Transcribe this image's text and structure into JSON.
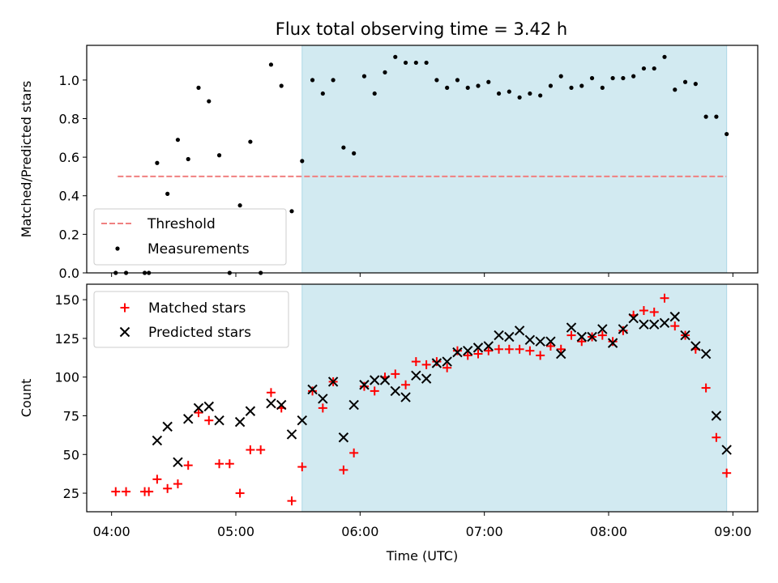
{
  "chart_data": {
    "title": "Flux total observing time = 3.42 h",
    "shaded_interval": [
      "05:32",
      "08:57"
    ],
    "shade_color": "#add8e6",
    "xlabel": "Time (UTC)",
    "x_ticks": [
      "04:00",
      "05:00",
      "06:00",
      "07:00",
      "08:00",
      "09:00"
    ],
    "xlim": [
      "03:48",
      "09:12"
    ],
    "panels": [
      {
        "type": "scatter",
        "ylabel": "Matched/Predicted stars",
        "ylim": [
          0,
          1.18
        ],
        "y_ticks": [
          "0.0",
          "0.2",
          "0.4",
          "0.6",
          "0.8",
          "1.0"
        ],
        "legend_position": "lower left",
        "threshold": {
          "name": "Threshold",
          "value": 0.5,
          "color": "#f08080",
          "x_range": [
            "04:03",
            "08:57"
          ]
        },
        "series": [
          {
            "name": "Measurements",
            "color": "#000000",
            "marker": "dot",
            "points": [
              [
                "04:02",
                0.0
              ],
              [
                "04:07",
                0.0
              ],
              [
                "04:16",
                0.0
              ],
              [
                "04:18",
                0.0
              ],
              [
                "04:22",
                0.57
              ],
              [
                "04:27",
                0.41
              ],
              [
                "04:32",
                0.69
              ],
              [
                "04:37",
                0.59
              ],
              [
                "04:42",
                0.96
              ],
              [
                "04:47",
                0.89
              ],
              [
                "04:52",
                0.61
              ],
              [
                "04:57",
                0.0
              ],
              [
                "05:02",
                0.35
              ],
              [
                "05:07",
                0.68
              ],
              [
                "05:12",
                0.0
              ],
              [
                "05:17",
                1.08
              ],
              [
                "05:22",
                0.97
              ],
              [
                "05:27",
                0.32
              ],
              [
                "05:32",
                0.58
              ],
              [
                "05:37",
                1.0
              ],
              [
                "05:42",
                0.93
              ],
              [
                "05:47",
                1.0
              ],
              [
                "05:52",
                0.65
              ],
              [
                "05:57",
                0.62
              ],
              [
                "06:02",
                1.02
              ],
              [
                "06:07",
                0.93
              ],
              [
                "06:12",
                1.04
              ],
              [
                "06:17",
                1.12
              ],
              [
                "06:22",
                1.09
              ],
              [
                "06:27",
                1.09
              ],
              [
                "06:32",
                1.09
              ],
              [
                "06:37",
                1.0
              ],
              [
                "06:42",
                0.96
              ],
              [
                "06:47",
                1.0
              ],
              [
                "06:52",
                0.96
              ],
              [
                "06:57",
                0.97
              ],
              [
                "07:02",
                0.99
              ],
              [
                "07:07",
                0.93
              ],
              [
                "07:12",
                0.94
              ],
              [
                "07:17",
                0.91
              ],
              [
                "07:22",
                0.93
              ],
              [
                "07:27",
                0.92
              ],
              [
                "07:32",
                0.97
              ],
              [
                "07:37",
                1.02
              ],
              [
                "07:42",
                0.96
              ],
              [
                "07:47",
                0.97
              ],
              [
                "07:52",
                1.01
              ],
              [
                "07:57",
                0.96
              ],
              [
                "08:02",
                1.01
              ],
              [
                "08:07",
                1.01
              ],
              [
                "08:12",
                1.02
              ],
              [
                "08:17",
                1.06
              ],
              [
                "08:22",
                1.06
              ],
              [
                "08:27",
                1.12
              ],
              [
                "08:32",
                0.95
              ],
              [
                "08:37",
                0.99
              ],
              [
                "08:42",
                0.98
              ],
              [
                "08:47",
                0.81
              ],
              [
                "08:52",
                0.81
              ],
              [
                "08:57",
                0.72
              ]
            ]
          }
        ]
      },
      {
        "type": "scatter",
        "ylabel": "Count",
        "ylim": [
          13,
          160
        ],
        "y_ticks": [
          "25",
          "50",
          "75",
          "100",
          "125",
          "150"
        ],
        "legend_position": "upper left",
        "series": [
          {
            "name": "Matched stars",
            "color": "#ff0000",
            "marker": "plus",
            "points": [
              [
                "04:02",
                26
              ],
              [
                "04:07",
                26
              ],
              [
                "04:16",
                26
              ],
              [
                "04:18",
                26
              ],
              [
                "04:22",
                34
              ],
              [
                "04:27",
                28
              ],
              [
                "04:32",
                31
              ],
              [
                "04:37",
                43
              ],
              [
                "04:42",
                77
              ],
              [
                "04:47",
                72
              ],
              [
                "04:52",
                44
              ],
              [
                "04:57",
                44
              ],
              [
                "05:02",
                25
              ],
              [
                "05:07",
                53
              ],
              [
                "05:12",
                53
              ],
              [
                "05:17",
                90
              ],
              [
                "05:22",
                80
              ],
              [
                "05:27",
                20
              ],
              [
                "05:32",
                42
              ],
              [
                "05:37",
                91
              ],
              [
                "05:42",
                80
              ],
              [
                "05:47",
                97
              ],
              [
                "05:52",
                40
              ],
              [
                "05:57",
                51
              ],
              [
                "06:02",
                94
              ],
              [
                "06:07",
                91
              ],
              [
                "06:12",
                100
              ],
              [
                "06:17",
                102
              ],
              [
                "06:22",
                95
              ],
              [
                "06:27",
                110
              ],
              [
                "06:32",
                108
              ],
              [
                "06:37",
                110
              ],
              [
                "06:42",
                106
              ],
              [
                "06:47",
                117
              ],
              [
                "06:52",
                114
              ],
              [
                "06:57",
                115
              ],
              [
                "07:02",
                117
              ],
              [
                "07:07",
                118
              ],
              [
                "07:12",
                118
              ],
              [
                "07:17",
                118
              ],
              [
                "07:22",
                117
              ],
              [
                "07:27",
                114
              ],
              [
                "07:32",
                120
              ],
              [
                "07:37",
                118
              ],
              [
                "07:42",
                127
              ],
              [
                "07:47",
                123
              ],
              [
                "07:52",
                126
              ],
              [
                "07:57",
                127
              ],
              [
                "08:02",
                123
              ],
              [
                "08:07",
                130
              ],
              [
                "08:12",
                140
              ],
              [
                "08:17",
                143
              ],
              [
                "08:22",
                142
              ],
              [
                "08:27",
                151
              ],
              [
                "08:32",
                133
              ],
              [
                "08:37",
                127
              ],
              [
                "08:42",
                118
              ],
              [
                "08:47",
                93
              ],
              [
                "08:52",
                61
              ],
              [
                "08:57",
                38
              ]
            ]
          },
          {
            "name": "Predicted stars",
            "color": "#000000",
            "marker": "x",
            "points": [
              [
                "04:22",
                59
              ],
              [
                "04:27",
                68
              ],
              [
                "04:32",
                45
              ],
              [
                "04:37",
                73
              ],
              [
                "04:42",
                80
              ],
              [
                "04:47",
                81
              ],
              [
                "04:52",
                72
              ],
              [
                "05:02",
                71
              ],
              [
                "05:07",
                78
              ],
              [
                "05:17",
                83
              ],
              [
                "05:22",
                82
              ],
              [
                "05:27",
                63
              ],
              [
                "05:32",
                72
              ],
              [
                "05:37",
                92
              ],
              [
                "05:42",
                86
              ],
              [
                "05:47",
                97
              ],
              [
                "05:52",
                61
              ],
              [
                "05:57",
                82
              ],
              [
                "06:02",
                95
              ],
              [
                "06:07",
                98
              ],
              [
                "06:12",
                98
              ],
              [
                "06:17",
                91
              ],
              [
                "06:22",
                87
              ],
              [
                "06:27",
                101
              ],
              [
                "06:32",
                99
              ],
              [
                "06:37",
                109
              ],
              [
                "06:42",
                110
              ],
              [
                "06:47",
                116
              ],
              [
                "06:52",
                117
              ],
              [
                "06:57",
                119
              ],
              [
                "07:02",
                120
              ],
              [
                "07:07",
                127
              ],
              [
                "07:12",
                126
              ],
              [
                "07:17",
                130
              ],
              [
                "07:22",
                124
              ],
              [
                "07:27",
                123
              ],
              [
                "07:32",
                123
              ],
              [
                "07:37",
                115
              ],
              [
                "07:42",
                132
              ],
              [
                "07:47",
                126
              ],
              [
                "07:52",
                126
              ],
              [
                "07:57",
                131
              ],
              [
                "08:02",
                122
              ],
              [
                "08:07",
                131
              ],
              [
                "08:12",
                138
              ],
              [
                "08:17",
                134
              ],
              [
                "08:22",
                134
              ],
              [
                "08:27",
                135
              ],
              [
                "08:32",
                139
              ],
              [
                "08:37",
                127
              ],
              [
                "08:42",
                120
              ],
              [
                "08:47",
                115
              ],
              [
                "08:52",
                75
              ],
              [
                "08:57",
                53
              ]
            ]
          }
        ]
      }
    ]
  }
}
